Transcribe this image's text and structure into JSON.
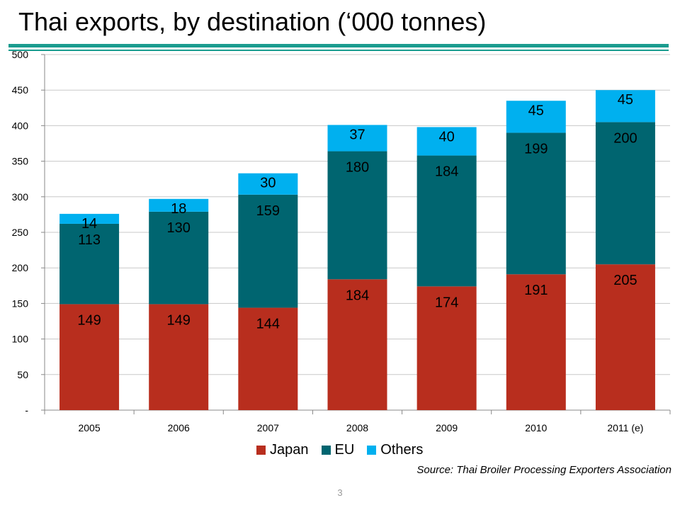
{
  "title": "Thai exports, by destination (‘000 tonnes)",
  "source": "Source:  Thai Broiler Processing Exporters Association",
  "page_number": "3",
  "colors": {
    "Japan": "#b82e1e",
    "EU": "#006570",
    "Others": "#00b0ef",
    "accent_rule": "#1a9c8f"
  },
  "chart_data": {
    "type": "bar",
    "stacked": true,
    "categories": [
      "2005",
      "2006",
      "2007",
      "2008",
      "2009",
      "2010",
      "2011 (e)"
    ],
    "series": [
      {
        "name": "Japan",
        "values": [
          149,
          149,
          144,
          184,
          174,
          191,
          205
        ]
      },
      {
        "name": "EU",
        "values": [
          113,
          130,
          159,
          180,
          184,
          199,
          200
        ]
      },
      {
        "name": "Others",
        "values": [
          14,
          18,
          30,
          37,
          40,
          45,
          45
        ]
      }
    ],
    "ylim": [
      0,
      500
    ],
    "yticks": [
      0,
      50,
      100,
      150,
      200,
      250,
      300,
      350,
      400,
      450,
      500
    ],
    "ytick_labels": [
      "-",
      "50",
      "100",
      "150",
      "200",
      "250",
      "300",
      "350",
      "400",
      "450",
      "500"
    ],
    "grid": true,
    "legend_position": "bottom"
  }
}
